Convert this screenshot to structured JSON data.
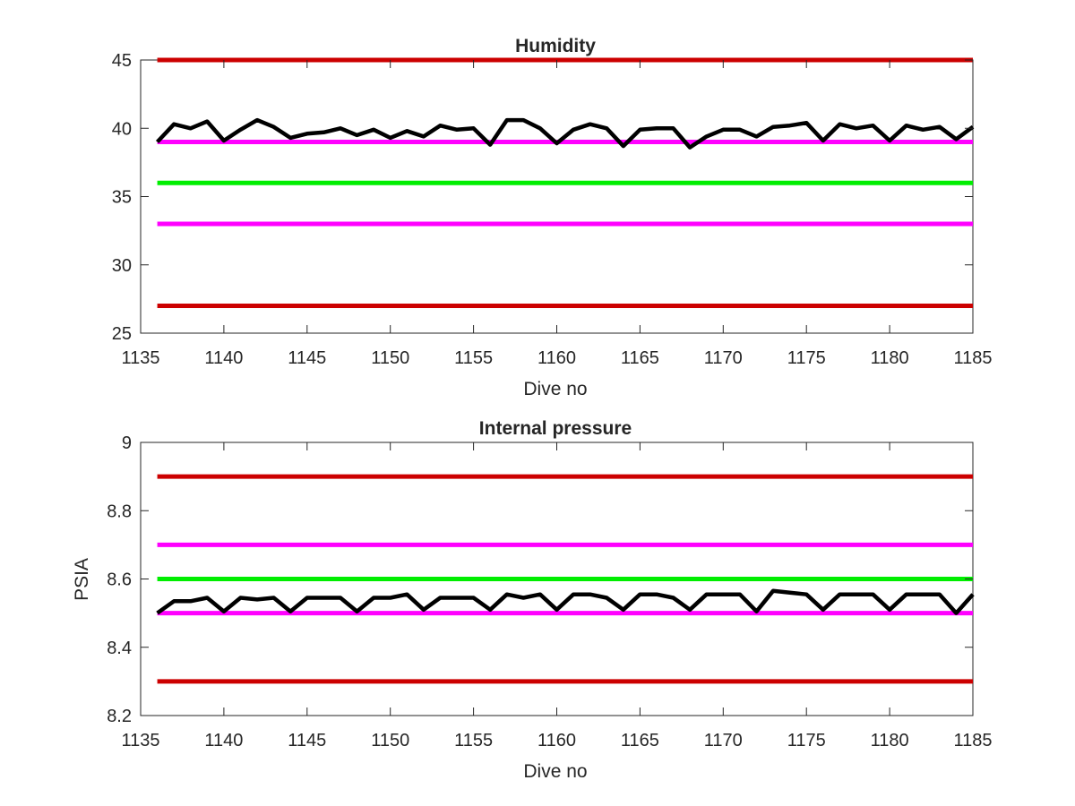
{
  "chart_data": [
    {
      "type": "line",
      "title": "Humidity",
      "xlabel": "Dive no",
      "ylabel": "",
      "xlim": [
        1135,
        1185
      ],
      "ylim": [
        25,
        45
      ],
      "xticks": [
        1135,
        1140,
        1145,
        1150,
        1155,
        1160,
        1165,
        1170,
        1175,
        1180,
        1185
      ],
      "yticks": [
        25,
        30,
        35,
        40,
        45
      ],
      "grid": false,
      "reference_lines": [
        {
          "y": 45,
          "color": "#cc0000"
        },
        {
          "y": 39,
          "color": "#ff00ff"
        },
        {
          "y": 36,
          "color": "#00ee00"
        },
        {
          "y": 33,
          "color": "#ff00ff"
        },
        {
          "y": 27,
          "color": "#cc0000"
        }
      ],
      "series": [
        {
          "color": "#000000",
          "x": [
            1136,
            1137,
            1138,
            1139,
            1140,
            1141,
            1142,
            1143,
            1144,
            1145,
            1146,
            1147,
            1148,
            1149,
            1150,
            1151,
            1152,
            1153,
            1154,
            1155,
            1156,
            1157,
            1158,
            1159,
            1160,
            1161,
            1162,
            1163,
            1164,
            1165,
            1166,
            1167,
            1168,
            1169,
            1170,
            1171,
            1172,
            1173,
            1174,
            1175,
            1176,
            1177,
            1178,
            1179,
            1180,
            1181,
            1182,
            1183,
            1184,
            1185
          ],
          "y": [
            39.0,
            40.3,
            40.0,
            40.5,
            39.1,
            39.9,
            40.6,
            40.1,
            39.3,
            39.6,
            39.7,
            40.0,
            39.5,
            39.9,
            39.3,
            39.8,
            39.4,
            40.2,
            39.9,
            40.0,
            38.8,
            40.6,
            40.6,
            40.0,
            38.9,
            39.9,
            40.3,
            40.0,
            38.7,
            39.9,
            40.0,
            40.0,
            38.6,
            39.4,
            39.9,
            39.9,
            39.4,
            40.1,
            40.2,
            40.4,
            39.1,
            40.3,
            40.0,
            40.2,
            39.1,
            40.2,
            39.9,
            40.1,
            39.2,
            40.1
          ]
        }
      ]
    },
    {
      "type": "line",
      "title": "Internal pressure",
      "xlabel": "Dive no",
      "ylabel": "PSIA",
      "xlim": [
        1135,
        1185
      ],
      "ylim": [
        8.2,
        9
      ],
      "xticks": [
        1135,
        1140,
        1145,
        1150,
        1155,
        1160,
        1165,
        1170,
        1175,
        1180,
        1185
      ],
      "yticks": [
        8.2,
        8.4,
        8.6,
        8.8,
        9
      ],
      "ytick_labels": [
        "8.2",
        "8.4",
        "8.6",
        "8.8",
        "9"
      ],
      "grid": false,
      "reference_lines": [
        {
          "y": 8.9,
          "color": "#cc0000"
        },
        {
          "y": 8.7,
          "color": "#ff00ff"
        },
        {
          "y": 8.6,
          "color": "#00ee00"
        },
        {
          "y": 8.5,
          "color": "#ff00ff"
        },
        {
          "y": 8.3,
          "color": "#cc0000"
        }
      ],
      "series": [
        {
          "color": "#000000",
          "x": [
            1136,
            1137,
            1138,
            1139,
            1140,
            1141,
            1142,
            1143,
            1144,
            1145,
            1146,
            1147,
            1148,
            1149,
            1150,
            1151,
            1152,
            1153,
            1154,
            1155,
            1156,
            1157,
            1158,
            1159,
            1160,
            1161,
            1162,
            1163,
            1164,
            1165,
            1166,
            1167,
            1168,
            1169,
            1170,
            1171,
            1172,
            1173,
            1174,
            1175,
            1176,
            1177,
            1178,
            1179,
            1180,
            1181,
            1182,
            1183,
            1184,
            1185
          ],
          "y": [
            8.5,
            8.535,
            8.535,
            8.545,
            8.505,
            8.545,
            8.54,
            8.545,
            8.505,
            8.545,
            8.545,
            8.545,
            8.505,
            8.545,
            8.545,
            8.555,
            8.51,
            8.545,
            8.545,
            8.545,
            8.51,
            8.555,
            8.545,
            8.555,
            8.51,
            8.555,
            8.555,
            8.545,
            8.51,
            8.555,
            8.555,
            8.545,
            8.51,
            8.555,
            8.555,
            8.555,
            8.505,
            8.565,
            8.56,
            8.555,
            8.51,
            8.555,
            8.555,
            8.555,
            8.51,
            8.555,
            8.555,
            8.555,
            8.5,
            8.555
          ]
        }
      ]
    }
  ]
}
